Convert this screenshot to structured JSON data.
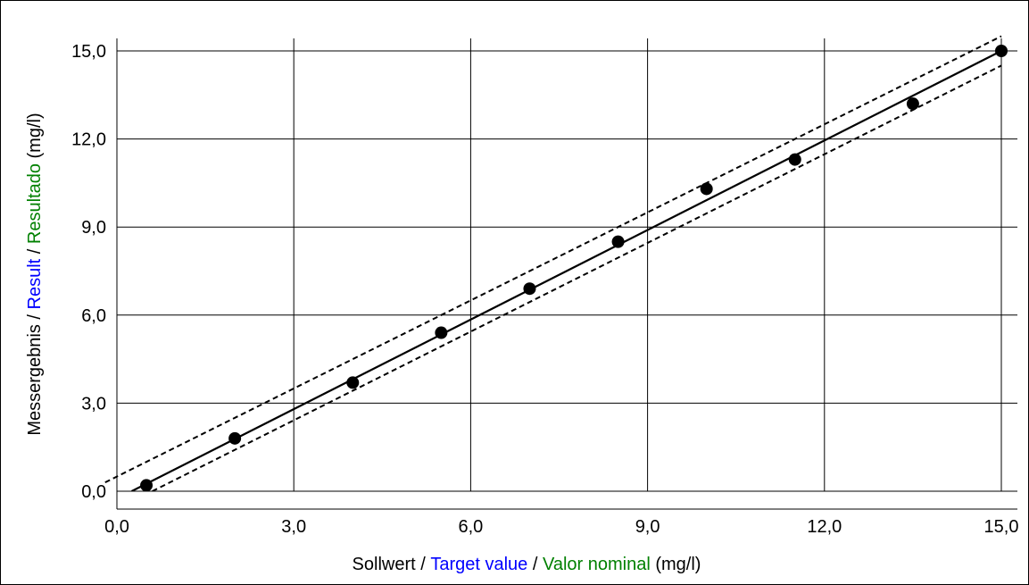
{
  "chart_data": {
    "type": "scatter",
    "xlabel": {
      "parts": [
        {
          "text": "Sollwert",
          "color": "#000000"
        },
        {
          "text": " / ",
          "color": "#000000"
        },
        {
          "text": "Target value",
          "color": "#0000ff"
        },
        {
          "text": " / ",
          "color": "#000000"
        },
        {
          "text": "Valor nominal",
          "color": "#008000"
        },
        {
          "text": " (mg/l)",
          "color": "#000000"
        }
      ]
    },
    "ylabel": {
      "parts": [
        {
          "text": "Messergebnis",
          "color": "#000000"
        },
        {
          "text": " / ",
          "color": "#000000"
        },
        {
          "text": "Result",
          "color": "#0000ff"
        },
        {
          "text": " / ",
          "color": "#000000"
        },
        {
          "text": "Resultado",
          "color": "#008000"
        },
        {
          "text": " (mg/l)",
          "color": "#000000"
        }
      ]
    },
    "xlim": [
      0,
      15
    ],
    "ylim": [
      0,
      15
    ],
    "xticks": [
      "0,0",
      "3,0",
      "6,0",
      "9,0",
      "12,0",
      "15,0"
    ],
    "yticks": [
      "0,0",
      "3,0",
      "6,0",
      "9,0",
      "12,0",
      "15,0"
    ],
    "grid": true,
    "points": [
      {
        "x": 0.5,
        "y": 0.2
      },
      {
        "x": 2.0,
        "y": 1.8
      },
      {
        "x": 4.0,
        "y": 3.7
      },
      {
        "x": 5.5,
        "y": 5.4
      },
      {
        "x": 7.0,
        "y": 6.9
      },
      {
        "x": 8.5,
        "y": 8.5
      },
      {
        "x": 10.0,
        "y": 10.3
      },
      {
        "x": 11.5,
        "y": 11.3
      },
      {
        "x": 13.5,
        "y": 13.2
      },
      {
        "x": 15.0,
        "y": 15.0
      }
    ],
    "regression_line": {
      "x": [
        0.25,
        15.0
      ],
      "y": [
        0.0,
        15.0
      ]
    },
    "upper_bound_line": {
      "x": [
        -0.2,
        15.0
      ],
      "y": [
        0.3,
        15.5
      ]
    },
    "lower_bound_line": {
      "x": [
        0.6,
        15.0
      ],
      "y": [
        0.0,
        14.5
      ]
    }
  }
}
